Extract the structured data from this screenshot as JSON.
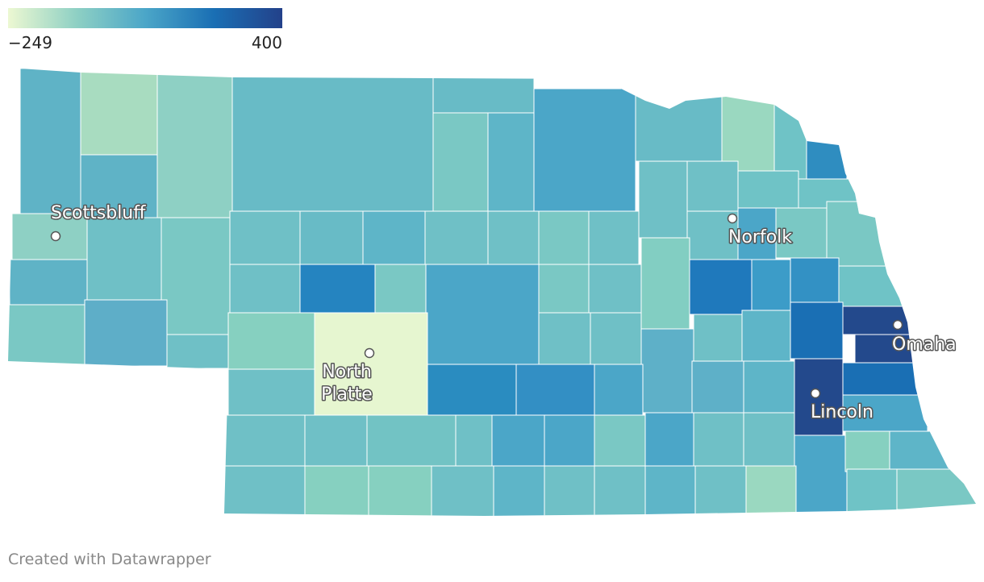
{
  "legend": {
    "ticks": [
      {
        "value": -249,
        "label": "−249"
      },
      400
    ],
    "colors": [
      "#edf8d2",
      "#8ed0c4",
      "#4ba6c8",
      "#1a6fb4",
      "#23418a"
    ]
  },
  "cities": [
    {
      "name": "Scottsbluff"
    },
    {
      "name": "Norfolk"
    },
    {
      "name": "North\nPlatte"
    },
    {
      "name": "Omaha"
    },
    {
      "name": "Lincoln"
    }
  ],
  "footer": "Created with Datawrapper"
}
